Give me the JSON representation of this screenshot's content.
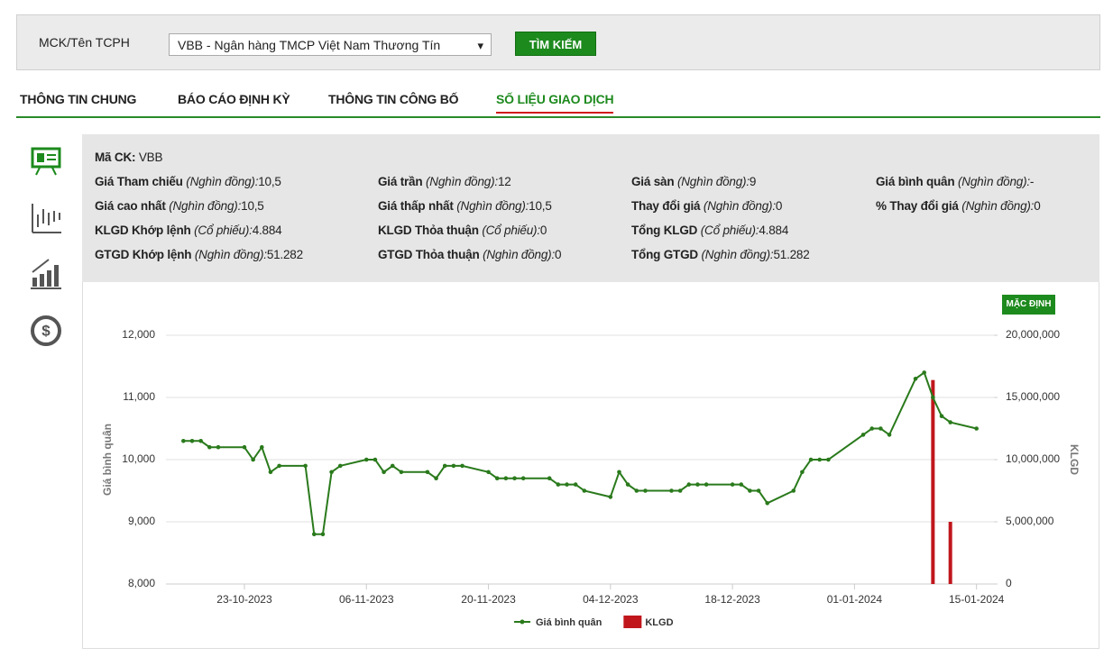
{
  "search": {
    "label": "MCK/Tên TCPH",
    "selected": "VBB - Ngân hàng TMCP Việt Nam Thương Tín",
    "button": "TÌM KIẾM"
  },
  "tabs": {
    "items": [
      "THÔNG TIN CHUNG",
      "BÁO CÁO ĐỊNH KỲ",
      "THÔNG TIN CÔNG BỐ",
      "SỐ LIỆU GIAO DỊCH"
    ],
    "active": 3
  },
  "info": {
    "code_label": "Mã CK:",
    "code": "VBB",
    "rows": [
      [
        {
          "label": "Giá Tham chiếu",
          "unit": "(Nghìn đồng):",
          "value": "10,5"
        },
        {
          "label": "Giá trần",
          "unit": "(Nghìn đồng):",
          "value": "12"
        },
        {
          "label": "Giá sàn",
          "unit": "(Nghìn đồng):",
          "value": "9"
        },
        {
          "label": "Giá bình quân",
          "unit": "(Nghìn đồng):",
          "value": "-"
        }
      ],
      [
        {
          "label": "Giá cao nhất",
          "unit": "(Nghìn đồng):",
          "value": "10,5"
        },
        {
          "label": "Giá thấp nhất",
          "unit": "(Nghìn đồng):",
          "value": "10,5"
        },
        {
          "label": "Thay đổi giá",
          "unit": "(Nghìn đồng):",
          "value": "0"
        },
        {
          "label": "% Thay đổi giá",
          "unit": "(Nghìn đồng):",
          "value": "0"
        }
      ],
      [
        {
          "label": "KLGD Khớp lệnh",
          "unit": "(Cổ phiếu):",
          "value": "4.884"
        },
        {
          "label": "KLGD Thỏa thuận",
          "unit": "(Cổ phiếu):",
          "value": "0"
        },
        {
          "label": "Tổng KLGD",
          "unit": "(Cổ phiếu):",
          "value": "4.884"
        }
      ],
      [
        {
          "label": "GTGD Khớp lệnh",
          "unit": "(Nghìn đồng):",
          "value": "51.282"
        },
        {
          "label": "GTGD Thỏa thuận",
          "unit": "(Nghìn đồng):",
          "value": "0"
        },
        {
          "label": "Tổng GTGD",
          "unit": "(Nghìn đồng):",
          "value": "51.282"
        }
      ]
    ]
  },
  "chart_data": {
    "type": "line",
    "reset_button": "MẶC ĐỊNH",
    "y_label": "Giá bình quân",
    "y2_label": "KLGD",
    "x": [
      "16-10-2023",
      "17-10-2023",
      "18-10-2023",
      "19-10-2023",
      "20-10-2023",
      "23-10-2023",
      "24-10-2023",
      "25-10-2023",
      "26-10-2023",
      "27-10-2023",
      "30-10-2023",
      "31-10-2023",
      "01-11-2023",
      "02-11-2023",
      "03-11-2023",
      "06-11-2023",
      "07-11-2023",
      "08-11-2023",
      "09-11-2023",
      "10-11-2023",
      "13-11-2023",
      "14-11-2023",
      "15-11-2023",
      "16-11-2023",
      "17-11-2023",
      "20-11-2023",
      "21-11-2023",
      "22-11-2023",
      "23-11-2023",
      "24-11-2023",
      "27-11-2023",
      "28-11-2023",
      "29-11-2023",
      "30-11-2023",
      "01-12-2023",
      "04-12-2023",
      "05-12-2023",
      "06-12-2023",
      "07-12-2023",
      "08-12-2023",
      "11-12-2023",
      "12-12-2023",
      "13-12-2023",
      "14-12-2023",
      "15-12-2023",
      "18-12-2023",
      "19-12-2023",
      "20-12-2023",
      "21-12-2023",
      "22-12-2023",
      "25-12-2023",
      "26-12-2023",
      "27-12-2023",
      "28-12-2023",
      "29-12-2023",
      "02-01-2024",
      "03-01-2024",
      "04-01-2024",
      "05-01-2024",
      "08-01-2024",
      "09-01-2024",
      "10-01-2024",
      "11-01-2024",
      "12-01-2024",
      "15-01-2024"
    ],
    "series": [
      {
        "name": "Giá bình quân",
        "color": "#2a7a1c",
        "values": [
          10300,
          10300,
          10300,
          10200,
          10200,
          10200,
          10000,
          10200,
          9800,
          9900,
          9900,
          8800,
          8800,
          9800,
          9900,
          10000,
          10000,
          9800,
          9900,
          9800,
          9800,
          9700,
          9900,
          9900,
          9900,
          9800,
          9700,
          9700,
          9700,
          9700,
          9700,
          9600,
          9600,
          9600,
          9500,
          9400,
          9800,
          9600,
          9500,
          9500,
          9500,
          9500,
          9600,
          9600,
          9600,
          9600,
          9600,
          9500,
          9500,
          9300,
          9500,
          9800,
          10000,
          10000,
          10000,
          10400,
          10500,
          10500,
          10400,
          11300,
          11400,
          11000,
          10700,
          10600,
          10500
        ]
      },
      {
        "name": "KLGD",
        "color": "#c0161c",
        "axis": "y2",
        "type": "bar",
        "values": [
          null,
          null,
          null,
          null,
          null,
          null,
          null,
          null,
          null,
          null,
          null,
          null,
          null,
          null,
          null,
          null,
          null,
          null,
          null,
          null,
          null,
          null,
          null,
          null,
          null,
          null,
          null,
          null,
          null,
          null,
          null,
          null,
          null,
          null,
          null,
          null,
          null,
          null,
          null,
          null,
          null,
          null,
          null,
          null,
          null,
          null,
          null,
          null,
          null,
          null,
          null,
          null,
          null,
          null,
          null,
          null,
          null,
          null,
          null,
          null,
          null,
          16400000,
          null,
          5000000,
          null
        ]
      }
    ],
    "xlim": [
      "14-10-2023",
      "17-01-2024"
    ],
    "xticks": [
      "23-10-2023",
      "06-11-2023",
      "20-11-2023",
      "04-12-2023",
      "18-12-2023",
      "01-01-2024",
      "15-01-2024"
    ],
    "ylim": [
      8000,
      12000
    ],
    "yticks": [
      {
        "value": 8000,
        "label": "8,000"
      },
      {
        "value": 9000,
        "label": "9,000"
      },
      {
        "value": 10000,
        "label": "10,000"
      },
      {
        "value": 11000,
        "label": "11,000"
      },
      {
        "value": 12000,
        "label": "12,000"
      }
    ],
    "y2lim": [
      0,
      20000000
    ],
    "y2ticks": [
      0,
      {
        "value": 5000000,
        "label": "5,000,000"
      },
      {
        "value": 10000000,
        "label": "10,000,000"
      },
      {
        "value": 15000000,
        "label": "15,000,000"
      },
      {
        "value": 20000000,
        "label": "20,000,000"
      }
    ],
    "grid": true
  }
}
